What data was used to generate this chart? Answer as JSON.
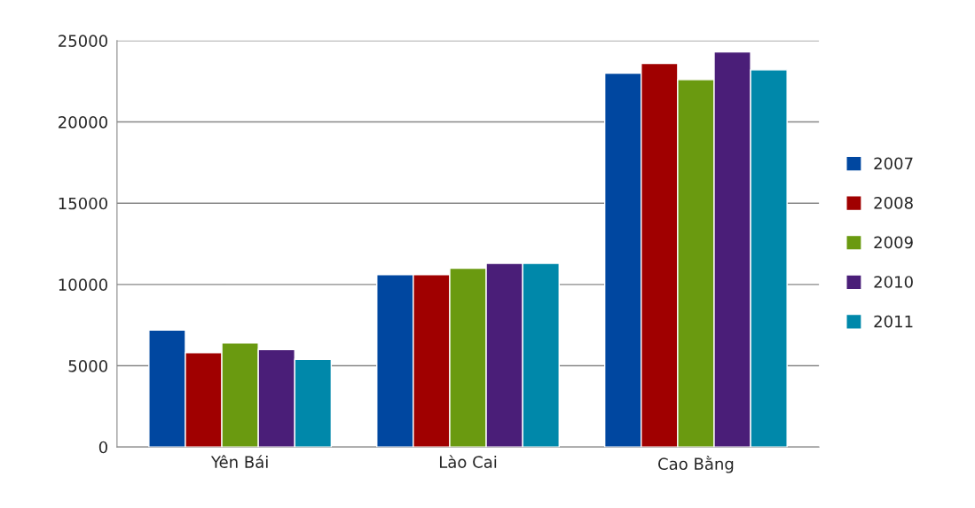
{
  "chart_data": {
    "type": "bar",
    "categories": [
      "Yên Bái",
      "Lào Cai",
      "Cao Bằng"
    ],
    "series": [
      {
        "name": "2007",
        "color": "#0047a0",
        "values": [
          7200,
          10600,
          23000
        ]
      },
      {
        "name": "2008",
        "color": "#a00000",
        "values": [
          5800,
          10600,
          23600
        ]
      },
      {
        "name": "2009",
        "color": "#6a9a10",
        "values": [
          6400,
          11000,
          22600
        ]
      },
      {
        "name": "2010",
        "color": "#4a1e78",
        "values": [
          6000,
          11300,
          24300
        ]
      },
      {
        "name": "2011",
        "color": "#0088aa",
        "values": [
          5400,
          11300,
          23200
        ]
      }
    ],
    "ylim": [
      0,
      25000
    ],
    "yticks": [
      0,
      5000,
      10000,
      15000,
      20000,
      25000
    ],
    "grid": "y",
    "legend": "right"
  }
}
